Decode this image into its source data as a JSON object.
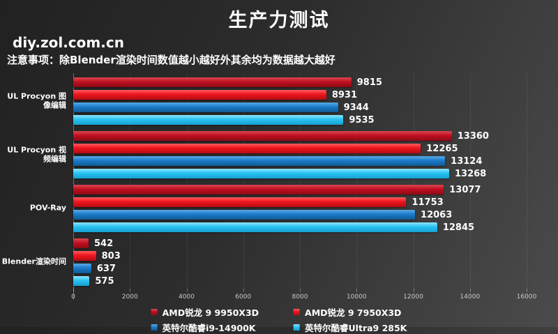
{
  "header": {
    "title": "生产力测试",
    "site": "diy.zol.com.cn",
    "note": "注意事项：除Blender渲染时间数值越小越好外其余均为数据越大越好"
  },
  "chart_data": {
    "type": "bar",
    "orientation": "horizontal",
    "title": "生产力测试",
    "categories": [
      "UL Procyon 图像编辑",
      "UL Procyon 视频编辑",
      "POV-Ray",
      "Blender渲染时间"
    ],
    "series": [
      {
        "name": "AMD锐龙 9 9950X3D",
        "color": "#bf1022",
        "color_light": "#dd4750",
        "color_dark": "#8c0a14",
        "values": [
          9815,
          13360,
          13077,
          542
        ]
      },
      {
        "name": "AMD锐龙 9 7950X3D",
        "color": "#ee151d",
        "color_light": "#ff5c60",
        "color_dark": "#b20d12",
        "values": [
          8931,
          12265,
          11753,
          803
        ]
      },
      {
        "name": "英特尔酷睿i9-14900K",
        "color": "#1b7bca",
        "color_light": "#58aae8",
        "color_dark": "#115a92",
        "values": [
          9344,
          13124,
          12063,
          637
        ]
      },
      {
        "name": "英特尔酷睿Ultra9 285K",
        "color": "#28c2f2",
        "color_light": "#8fe6fc",
        "color_dark": "#17a0cf",
        "values": [
          9535,
          13268,
          12845,
          575
        ]
      }
    ],
    "xlim": [
      0,
      16000
    ],
    "x_ticks": [
      0,
      2000,
      4000,
      6000,
      8000,
      10000,
      12000,
      14000,
      16000
    ],
    "grid": true,
    "legend_position": "bottom",
    "background": "#2d2d2d",
    "text_color": "#ffffff"
  }
}
